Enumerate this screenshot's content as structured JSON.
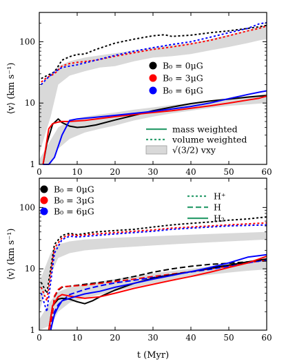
{
  "chart_data": [
    {
      "type": "line",
      "yscale": "log",
      "xlim": [
        0,
        60
      ],
      "ylim": [
        1,
        300
      ],
      "x_ticks": [
        "0",
        "10",
        "20",
        "30",
        "40",
        "50",
        "60"
      ],
      "y_ticks": [
        "1",
        "10",
        "100"
      ],
      "ylabel": "⟨v⟩ (km s⁻¹)",
      "xlabel": "",
      "legend_colors": [
        {
          "label": "B₀ = 0μG",
          "color": "#000000"
        },
        {
          "label": "B₀ = 3μG",
          "color": "#ff0000"
        },
        {
          "label": "B₀ = 6μG",
          "color": "#0000ff"
        }
      ],
      "legend_styles": [
        {
          "label": "mass weighted",
          "style": "solid",
          "color": "#2e9e6e"
        },
        {
          "label": "volume weighted",
          "style": "dotted",
          "color": "#2e9e6e"
        },
        {
          "label": "√(3/2) vxy",
          "style": "band",
          "color": "#d9d9d9"
        }
      ],
      "band": {
        "x": [
          0,
          3,
          5,
          8,
          12,
          16,
          20,
          25,
          30,
          35,
          40,
          45,
          50,
          55,
          58,
          60
        ],
        "low_a": [
          1.5,
          6,
          20,
          28,
          33,
          38,
          40,
          48,
          55,
          58,
          63,
          72,
          82,
          95,
          105,
          110
        ],
        "high_a": [
          18,
          30,
          40,
          48,
          55,
          60,
          65,
          72,
          80,
          88,
          95,
          110,
          130,
          155,
          175,
          190
        ],
        "low_b": [
          0.5,
          1.0,
          1.8,
          2.6,
          3.3,
          3.8,
          4.3,
          5.2,
          6.0,
          6.8,
          7.5,
          8.3,
          9.0,
          9.5,
          9.8,
          10
        ],
        "high_b": [
          1.2,
          2.5,
          4.0,
          5.2,
          6.0,
          6.5,
          7.0,
          7.8,
          8.5,
          9.3,
          10,
          11,
          12,
          13,
          13.5,
          14
        ]
      },
      "series": [
        {
          "color": "#000000",
          "style": "solid",
          "x": [
            1,
            2,
            3.5,
            5,
            6,
            8,
            10,
            12,
            15,
            20,
            25,
            30,
            35,
            40,
            45,
            50,
            55,
            60
          ],
          "values": [
            1,
            2.2,
            4.5,
            5.5,
            4.8,
            4.2,
            4.0,
            4.1,
            4.4,
            5.3,
            6.3,
            7.5,
            8.6,
            9.8,
            10.8,
            11.6,
            12.5,
            13.3
          ]
        },
        {
          "color": "#ff0000",
          "style": "solid",
          "x": [
            1,
            2.5,
            3.5,
            5,
            6,
            8,
            12,
            20,
            25,
            30,
            35,
            40,
            45,
            50,
            55,
            58,
            60
          ],
          "values": [
            1,
            3.8,
            4.6,
            4.9,
            5.0,
            5.0,
            5.2,
            6.0,
            6.5,
            7.0,
            7.5,
            8.2,
            9.0,
            10.0,
            11.2,
            12.0,
            13.0
          ]
        },
        {
          "color": "#0000ff",
          "style": "solid",
          "x": [
            1,
            2.5,
            4,
            6,
            8,
            10,
            14,
            20,
            25,
            30,
            35,
            40,
            45,
            50,
            55,
            58,
            60
          ],
          "values": [
            1,
            1.0,
            1.3,
            3.0,
            5.2,
            5.5,
            5.8,
            6.3,
            6.8,
            7.3,
            8.0,
            8.8,
            10.0,
            11.8,
            13.8,
            15.0,
            15.8
          ]
        },
        {
          "color": "#000000",
          "style": "dotted",
          "x": [
            0.5,
            2,
            4,
            6,
            8,
            10,
            12,
            15,
            20,
            25,
            30,
            33,
            35,
            40,
            45,
            50,
            55,
            58,
            60
          ],
          "values": [
            25,
            28,
            32,
            50,
            57,
            62,
            63,
            75,
            95,
            110,
            125,
            130,
            122,
            128,
            140,
            150,
            165,
            175,
            185
          ]
        },
        {
          "color": "#ff0000",
          "style": "dotted",
          "x": [
            0.5,
            2,
            4,
            6,
            8,
            10,
            15,
            20,
            25,
            30,
            35,
            40,
            45,
            50,
            55,
            58,
            60
          ],
          "values": [
            22,
            26,
            30,
            40,
            44,
            46,
            50,
            58,
            66,
            75,
            82,
            92,
            105,
            125,
            150,
            165,
            180
          ]
        },
        {
          "color": "#0000ff",
          "style": "dotted",
          "x": [
            0.5,
            2,
            4,
            6,
            8,
            10,
            15,
            20,
            25,
            30,
            35,
            40,
            45,
            50,
            55,
            58,
            60
          ],
          "values": [
            20,
            25,
            32,
            38,
            40,
            42,
            50,
            60,
            70,
            80,
            90,
            100,
            118,
            140,
            165,
            195,
            205
          ]
        }
      ]
    },
    {
      "type": "line",
      "yscale": "log",
      "xlim": [
        0,
        60
      ],
      "ylim": [
        1,
        300
      ],
      "x_ticks": [
        "0",
        "10",
        "20",
        "30",
        "40",
        "50",
        "60"
      ],
      "y_ticks": [
        "1",
        "10",
        "100"
      ],
      "ylabel": "⟨v⟩ (km s⁻¹)",
      "xlabel": "t (Myr)",
      "legend_colors": [
        {
          "label": "B₀ = 0μG",
          "color": "#000000"
        },
        {
          "label": "B₀ = 3μG",
          "color": "#ff0000"
        },
        {
          "label": "B₀ = 6μG",
          "color": "#0000ff"
        }
      ],
      "legend_styles": [
        {
          "label": "H⁺",
          "style": "dotted",
          "color": "#2e9e6e"
        },
        {
          "label": "H",
          "style": "dashed",
          "color": "#2e9e6e"
        },
        {
          "label": "H₂",
          "style": "solid",
          "color": "#2e9e6e"
        }
      ],
      "band": {
        "x": [
          0,
          3,
          5,
          8,
          12,
          16,
          20,
          25,
          30,
          35,
          40,
          45,
          50,
          55,
          60
        ],
        "low_a": [
          2,
          8,
          15,
          18,
          20,
          21,
          22,
          23,
          24,
          25,
          26,
          27,
          28,
          29,
          30
        ],
        "high_a": [
          6,
          18,
          25,
          28,
          30,
          31,
          32,
          33,
          34,
          35,
          36,
          37,
          38,
          39,
          40
        ],
        "low_b": [
          0.6,
          1.2,
          2.0,
          2.8,
          3.3,
          3.8,
          4.3,
          5.0,
          5.8,
          6.5,
          7.3,
          8.0,
          8.7,
          9.3,
          9.8
        ],
        "high_b": [
          1.5,
          3.0,
          4.2,
          5.0,
          5.6,
          6.2,
          6.8,
          7.6,
          8.4,
          9.2,
          10,
          11,
          12,
          13,
          14
        ]
      },
      "series": [
        {
          "color": "#000000",
          "style": "dotted",
          "x": [
            0.5,
            2,
            3,
            4,
            6,
            8,
            10,
            15,
            20,
            25,
            30,
            35,
            40,
            45,
            50,
            55,
            58,
            60
          ],
          "values": [
            6,
            4,
            10,
            25,
            35,
            38,
            36,
            40,
            42,
            44,
            48,
            52,
            55,
            58,
            62,
            65,
            68,
            70
          ]
        },
        {
          "color": "#ff0000",
          "style": "dotted",
          "x": [
            0.5,
            2,
            3,
            4,
            6,
            8,
            10,
            15,
            20,
            25,
            30,
            35,
            40,
            45,
            50,
            55,
            60
          ],
          "values": [
            5,
            3,
            8,
            22,
            32,
            36,
            35,
            37,
            39,
            41,
            43,
            46,
            48,
            50,
            52,
            54,
            56
          ]
        },
        {
          "color": "#0000ff",
          "style": "dotted",
          "x": [
            0.5,
            2,
            3,
            4,
            6,
            8,
            10,
            15,
            20,
            25,
            30,
            35,
            40,
            45,
            50,
            55,
            60
          ],
          "values": [
            4,
            2,
            6,
            18,
            30,
            34,
            33,
            35,
            37,
            39,
            41,
            44,
            46,
            48,
            50,
            51,
            52
          ]
        },
        {
          "color": "#000000",
          "style": "dashed",
          "x": [
            3,
            4,
            5,
            6,
            8,
            12,
            16,
            20,
            25,
            30,
            35,
            40,
            45,
            50,
            55,
            60
          ],
          "values": [
            1,
            3.5,
            4.5,
            5.0,
            5.2,
            5.6,
            6.0,
            6.5,
            7.5,
            8.8,
            10,
            11,
            11.8,
            12.3,
            13,
            13.5
          ]
        },
        {
          "color": "#ff0000",
          "style": "dashed",
          "x": [
            3,
            4,
            5,
            6,
            8,
            12,
            16,
            20,
            25,
            30,
            35,
            40,
            45,
            50,
            55,
            60
          ],
          "values": [
            1,
            3.6,
            4.6,
            5.1,
            5.2,
            5.4,
            5.8,
            6.2,
            6.8,
            7.5,
            8.2,
            9.0,
            10,
            11,
            12.5,
            14
          ]
        },
        {
          "color": "#0000ff",
          "style": "dashed",
          "x": [
            3,
            4,
            5,
            6,
            8,
            12,
            16,
            20,
            25,
            30,
            35,
            40,
            45,
            50,
            55,
            60
          ],
          "values": [
            1,
            2.0,
            2.6,
            3.0,
            3.8,
            4.6,
            5.3,
            5.9,
            6.5,
            7.2,
            8.0,
            8.9,
            9.8,
            11,
            12.5,
            14
          ]
        },
        {
          "color": "#000000",
          "style": "solid",
          "x": [
            2.5,
            3.5,
            5,
            6,
            8,
            10,
            12,
            14,
            16,
            20,
            25,
            30,
            35,
            40,
            45,
            50,
            55,
            60
          ],
          "values": [
            1,
            2.5,
            3.2,
            3.3,
            3.2,
            2.9,
            2.7,
            3.0,
            3.5,
            4.5,
            5.8,
            7.0,
            8.0,
            9.0,
            10.2,
            11.5,
            13,
            14.5
          ]
        },
        {
          "color": "#ff0000",
          "style": "solid",
          "x": [
            2.5,
            3.5,
            5,
            6,
            8,
            12,
            16,
            20,
            25,
            30,
            35,
            40,
            45,
            50,
            55,
            58,
            60
          ],
          "values": [
            1,
            2.5,
            3.5,
            3.8,
            3.6,
            3.3,
            3.5,
            4.0,
            4.8,
            5.6,
            6.5,
            7.5,
            8.8,
            10.5,
            12.5,
            14.5,
            16
          ]
        },
        {
          "color": "#0000ff",
          "style": "solid",
          "x": [
            3,
            4,
            5,
            6,
            8,
            10,
            12,
            16,
            20,
            25,
            30,
            35,
            40,
            45,
            50,
            55,
            60
          ],
          "values": [
            1,
            1.8,
            2.4,
            3.0,
            3.3,
            3.6,
            3.9,
            4.3,
            5.0,
            5.8,
            6.8,
            7.8,
            9.0,
            10.5,
            12.5,
            15.5,
            17
          ]
        }
      ]
    }
  ]
}
